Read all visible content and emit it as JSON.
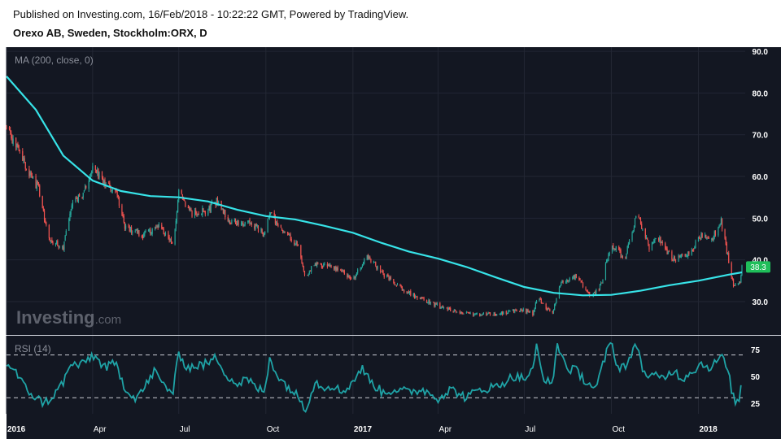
{
  "header": {
    "published": "Published on Investing.com, 16/Feb/2018 - 10:22:22 GMT, Powered by TradingView.",
    "symbol": "Orexo AB, Sweden, Stockholm:ORX, D"
  },
  "watermark": {
    "text_main": "Investing",
    "text_suffix": ".com"
  },
  "colors": {
    "background": "#131722",
    "grid": "#232734",
    "up": "#26a69a",
    "down": "#ef5350",
    "ma": "#37e3e8",
    "rsi": "#1fa3a6",
    "price_label": "#1fbe5a",
    "axis_text": "#ffffff"
  },
  "chart_data": [
    {
      "type": "candlestick",
      "indicator_label": "MA (200, close, 0)",
      "y_axis": {
        "ticks": [
          "30.0",
          "40.0",
          "50.0",
          "60.0",
          "70.0",
          "80.0",
          "90.0"
        ],
        "range": [
          22,
          91
        ]
      },
      "last_price_label": "38.3",
      "price_anchors": [
        [
          "2016-01-01",
          72
        ],
        [
          "2016-01-18",
          64
        ],
        [
          "2016-02-04",
          57
        ],
        [
          "2016-02-15",
          45
        ],
        [
          "2016-03-01",
          43
        ],
        [
          "2016-03-10",
          53
        ],
        [
          "2016-03-25",
          57
        ],
        [
          "2016-04-01",
          62
        ],
        [
          "2016-04-15",
          58
        ],
        [
          "2016-04-25",
          57
        ],
        [
          "2016-05-05",
          48
        ],
        [
          "2016-05-25",
          46
        ],
        [
          "2016-06-10",
          48
        ],
        [
          "2016-06-25",
          44
        ],
        [
          "2016-07-01",
          56
        ],
        [
          "2016-07-15",
          51
        ],
        [
          "2016-08-01",
          52
        ],
        [
          "2016-08-10",
          54
        ],
        [
          "2016-08-25",
          49
        ],
        [
          "2016-09-15",
          49
        ],
        [
          "2016-09-30",
          46
        ],
        [
          "2016-10-05",
          51
        ],
        [
          "2016-10-20",
          47
        ],
        [
          "2016-11-05",
          43
        ],
        [
          "2016-11-12",
          35
        ],
        [
          "2016-11-20",
          39
        ],
        [
          "2016-12-15",
          38
        ],
        [
          "2017-01-01",
          35
        ],
        [
          "2017-01-15",
          41
        ],
        [
          "2017-02-05",
          36
        ],
        [
          "2017-03-01",
          32
        ],
        [
          "2017-04-01",
          29
        ],
        [
          "2017-05-01",
          27
        ],
        [
          "2017-06-01",
          27
        ],
        [
          "2017-07-01",
          28
        ],
        [
          "2017-07-10",
          27
        ],
        [
          "2017-07-15",
          31
        ],
        [
          "2017-07-30",
          27
        ],
        [
          "2017-08-10",
          35
        ],
        [
          "2017-08-25",
          36
        ],
        [
          "2017-09-10",
          31
        ],
        [
          "2017-09-20",
          34
        ],
        [
          "2017-10-01",
          44
        ],
        [
          "2017-10-15",
          40
        ],
        [
          "2017-10-28",
          51
        ],
        [
          "2017-11-10",
          43
        ],
        [
          "2017-11-20",
          45
        ],
        [
          "2017-12-05",
          40
        ],
        [
          "2017-12-20",
          41
        ],
        [
          "2018-01-05",
          46
        ],
        [
          "2018-01-15",
          45
        ],
        [
          "2018-01-25",
          49
        ],
        [
          "2018-02-01",
          41
        ],
        [
          "2018-02-07",
          34
        ],
        [
          "2018-02-14",
          34
        ],
        [
          "2018-02-16",
          38.3
        ]
      ],
      "ma_200": [
        [
          "2016-01-01",
          84
        ],
        [
          "2016-02-01",
          76
        ],
        [
          "2016-03-01",
          65
        ],
        [
          "2016-04-01",
          59
        ],
        [
          "2016-05-01",
          56.5
        ],
        [
          "2016-06-01",
          55.3
        ],
        [
          "2016-07-01",
          55
        ],
        [
          "2016-08-01",
          54
        ],
        [
          "2016-09-01",
          52
        ],
        [
          "2016-10-01",
          50.5
        ],
        [
          "2016-11-01",
          49.7
        ],
        [
          "2016-12-01",
          48.2
        ],
        [
          "2017-01-01",
          46.5
        ],
        [
          "2017-02-01",
          44
        ],
        [
          "2017-03-01",
          42
        ],
        [
          "2017-04-01",
          40.3
        ],
        [
          "2017-05-01",
          38.3
        ],
        [
          "2017-06-01",
          35.8
        ],
        [
          "2017-07-01",
          33.5
        ],
        [
          "2017-08-01",
          32.1
        ],
        [
          "2017-09-01",
          31.5
        ],
        [
          "2017-10-01",
          31.6
        ],
        [
          "2017-11-01",
          32.6
        ],
        [
          "2017-12-01",
          33.9
        ],
        [
          "2018-01-01",
          35
        ],
        [
          "2018-02-01",
          36.4
        ],
        [
          "2018-02-16",
          37
        ]
      ]
    },
    {
      "type": "line",
      "indicator_label": "RSI (14)",
      "y_axis": {
        "ticks": [
          "25",
          "50",
          "75"
        ],
        "range": [
          15,
          88
        ]
      },
      "levels": [
        30,
        70
      ],
      "values": [
        [
          "2016-01-01",
          62
        ],
        [
          "2016-01-10",
          55
        ],
        [
          "2016-01-20",
          40
        ],
        [
          "2016-02-01",
          30
        ],
        [
          "2016-02-10",
          25
        ],
        [
          "2016-02-20",
          32
        ],
        [
          "2016-03-01",
          45
        ],
        [
          "2016-03-10",
          62
        ],
        [
          "2016-03-20",
          60
        ],
        [
          "2016-04-01",
          70
        ],
        [
          "2016-04-15",
          58
        ],
        [
          "2016-04-25",
          62
        ],
        [
          "2016-05-05",
          40
        ],
        [
          "2016-05-15",
          30
        ],
        [
          "2016-05-25",
          38
        ],
        [
          "2016-06-05",
          55
        ],
        [
          "2016-06-15",
          42
        ],
        [
          "2016-06-25",
          35
        ],
        [
          "2016-07-01",
          72
        ],
        [
          "2016-07-10",
          58
        ],
        [
          "2016-07-20",
          60
        ],
        [
          "2016-08-01",
          62
        ],
        [
          "2016-08-10",
          68
        ],
        [
          "2016-08-20",
          52
        ],
        [
          "2016-09-01",
          42
        ],
        [
          "2016-09-10",
          48
        ],
        [
          "2016-09-20",
          40
        ],
        [
          "2016-09-30",
          35
        ],
        [
          "2016-10-05",
          68
        ],
        [
          "2016-10-15",
          48
        ],
        [
          "2016-10-25",
          40
        ],
        [
          "2016-11-05",
          30
        ],
        [
          "2016-11-12",
          20
        ],
        [
          "2016-11-22",
          45
        ],
        [
          "2016-12-01",
          40
        ],
        [
          "2016-12-10",
          42
        ],
        [
          "2016-12-20",
          35
        ],
        [
          "2017-01-01",
          45
        ],
        [
          "2017-01-10",
          58
        ],
        [
          "2017-01-20",
          45
        ],
        [
          "2017-02-01",
          35
        ],
        [
          "2017-02-15",
          38
        ],
        [
          "2017-03-01",
          35
        ],
        [
          "2017-03-15",
          38
        ],
        [
          "2017-04-01",
          30
        ],
        [
          "2017-04-15",
          38
        ],
        [
          "2017-05-01",
          30
        ],
        [
          "2017-05-15",
          38
        ],
        [
          "2017-06-01",
          40
        ],
        [
          "2017-06-10",
          45
        ],
        [
          "2017-06-20",
          50
        ],
        [
          "2017-07-01",
          48
        ],
        [
          "2017-07-10",
          55
        ],
        [
          "2017-07-14",
          78
        ],
        [
          "2017-07-20",
          52
        ],
        [
          "2017-07-30",
          40
        ],
        [
          "2017-08-05",
          80
        ],
        [
          "2017-08-15",
          58
        ],
        [
          "2017-08-25",
          55
        ],
        [
          "2017-09-05",
          45
        ],
        [
          "2017-09-15",
          38
        ],
        [
          "2017-09-25",
          70
        ],
        [
          "2017-10-01",
          82
        ],
        [
          "2017-10-08",
          58
        ],
        [
          "2017-10-18",
          62
        ],
        [
          "2017-10-28",
          80
        ],
        [
          "2017-11-05",
          52
        ],
        [
          "2017-11-15",
          50
        ],
        [
          "2017-11-25",
          48
        ],
        [
          "2017-12-05",
          56
        ],
        [
          "2017-12-15",
          48
        ],
        [
          "2017-12-25",
          55
        ],
        [
          "2018-01-05",
          62
        ],
        [
          "2018-01-15",
          58
        ],
        [
          "2018-01-25",
          70
        ],
        [
          "2018-02-01",
          55
        ],
        [
          "2018-02-07",
          30
        ],
        [
          "2018-02-12",
          24
        ],
        [
          "2018-02-16",
          45
        ]
      ]
    }
  ],
  "x_axis": {
    "ticks": [
      {
        "date": "2016-01-01",
        "label": "2016",
        "bold": true
      },
      {
        "date": "2016-04-01",
        "label": "Apr",
        "bold": false
      },
      {
        "date": "2016-07-01",
        "label": "Jul",
        "bold": false
      },
      {
        "date": "2016-10-01",
        "label": "Oct",
        "bold": false
      },
      {
        "date": "2017-01-01",
        "label": "2017",
        "bold": true
      },
      {
        "date": "2017-04-01",
        "label": "Apr",
        "bold": false
      },
      {
        "date": "2017-07-01",
        "label": "Jul",
        "bold": false
      },
      {
        "date": "2017-10-01",
        "label": "Oct",
        "bold": false
      },
      {
        "date": "2018-01-01",
        "label": "2018",
        "bold": true
      }
    ]
  }
}
